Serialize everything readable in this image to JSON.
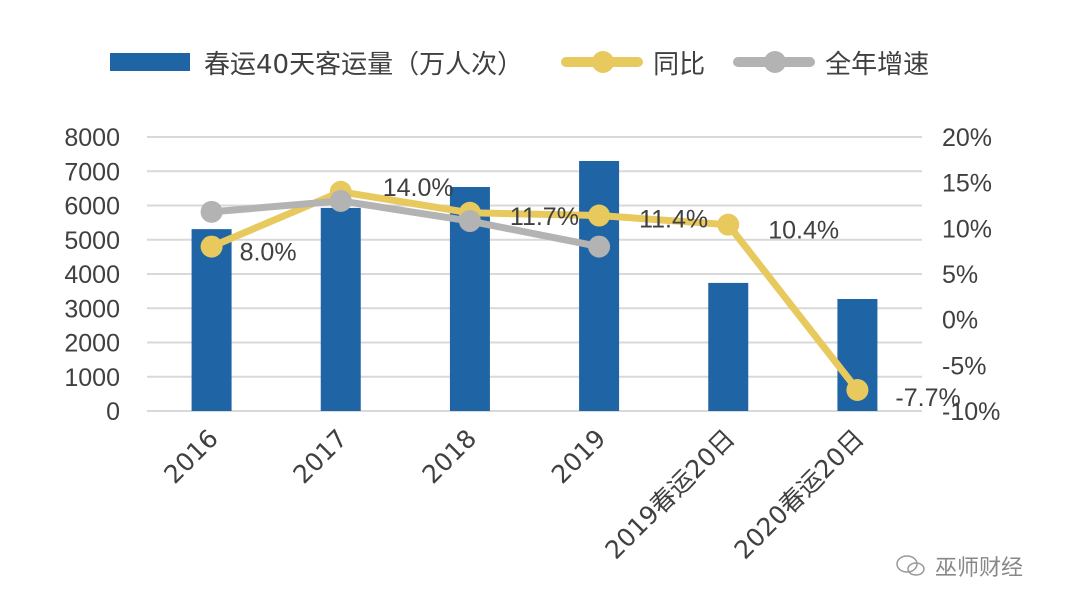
{
  "legend": {
    "bar_label": "春运40天客运量（万人次）",
    "yoy_label": "同比",
    "annual_label": "全年增速"
  },
  "colors": {
    "bar": "#1f65a6",
    "yoy": "#e8c95e",
    "annual": "#b3b3b3",
    "grid": "#d9d9d9",
    "text": "#404040"
  },
  "watermark": "巫师财经",
  "chart_data": {
    "type": "bar+line",
    "title": "",
    "categories": [
      "2016",
      "2017",
      "2018",
      "2019",
      "2019春运20日",
      "2020春运20日"
    ],
    "series": [
      {
        "name": "春运40天客运量（万人次）",
        "type": "bar",
        "axis": "left",
        "values": [
          5310,
          5930,
          6540,
          7300,
          3740,
          3270
        ]
      },
      {
        "name": "同比",
        "type": "line",
        "axis": "right",
        "values": [
          8.0,
          14.0,
          11.7,
          11.4,
          10.4,
          -7.7
        ],
        "labels": [
          "8.0%",
          "14.0%",
          "11.7%",
          "11.4%",
          "10.4%",
          "-7.7%"
        ]
      },
      {
        "name": "全年增速",
        "type": "line",
        "axis": "right",
        "values": [
          11.8,
          13.0,
          10.8,
          8.0,
          null,
          null
        ]
      }
    ],
    "left_axis": {
      "ticks": [
        "0",
        "1000",
        "2000",
        "3000",
        "4000",
        "5000",
        "6000",
        "7000",
        "8000"
      ],
      "ylim": [
        0,
        8000
      ]
    },
    "right_axis": {
      "ticks": [
        "-10%",
        "-5%",
        "0%",
        "5%",
        "10%",
        "15%",
        "20%"
      ],
      "ylim": [
        -10,
        20
      ]
    },
    "grid": true,
    "legend_position": "top"
  }
}
